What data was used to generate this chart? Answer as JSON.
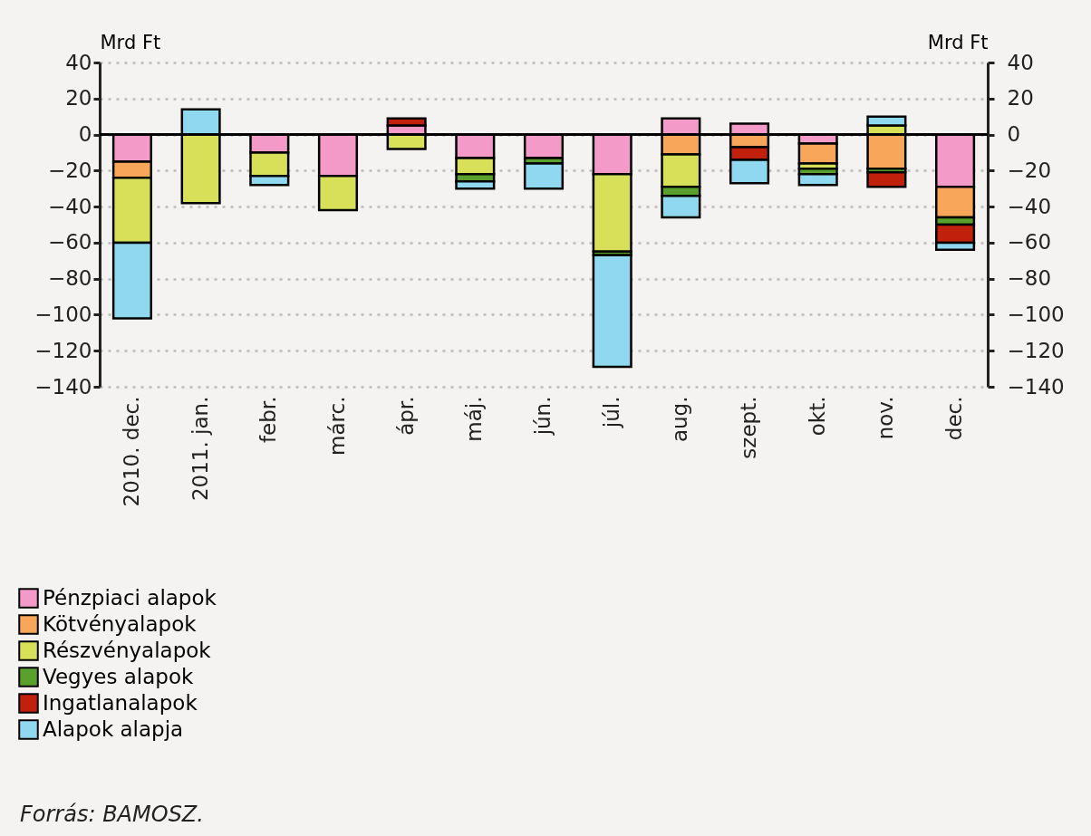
{
  "chart_data": {
    "type": "bar",
    "stacked": true,
    "ylabel": "Mrd Ft",
    "y2label": "Mrd Ft",
    "categories": [
      "2010. dec.",
      "2011. jan.",
      "febr.",
      "márc.",
      "ápr.",
      "máj.",
      "jún.",
      "júl.",
      "aug.",
      "szept.",
      "okt.",
      "nov.",
      "dec."
    ],
    "series": [
      {
        "name": "Pénzpiaci alapok",
        "color": "#f49ac8",
        "values": [
          -15,
          0,
          -10,
          -23,
          5,
          -13,
          -13,
          -22,
          9,
          6,
          -5,
          0,
          -29
        ]
      },
      {
        "name": "Kötvényalapok",
        "color": "#f7a65a",
        "values": [
          -9,
          0,
          0,
          0,
          0,
          0,
          0,
          0,
          -11,
          -7,
          -11,
          -19,
          -17
        ]
      },
      {
        "name": "Részvényalapok",
        "color": "#d8e05a",
        "values": [
          -36,
          -38,
          -13,
          -19,
          -8,
          -9,
          0,
          -43,
          -18,
          0,
          -3,
          5,
          0
        ]
      },
      {
        "name": "Vegyes alapok",
        "color": "#5aa02c",
        "values": [
          null,
          null,
          null,
          null,
          0,
          -4,
          -3,
          -2,
          -5,
          0,
          -3,
          -2,
          -4
        ]
      },
      {
        "name": "Ingatlanalapok",
        "color": "#c0200c",
        "values": [
          0,
          0,
          0,
          0,
          4,
          0,
          0,
          0,
          0,
          -7,
          0,
          -8,
          -10
        ]
      },
      {
        "name": "Alapok alapja",
        "color": "#8fd8f0",
        "values": [
          -42,
          14,
          -5,
          0,
          0,
          -4,
          -14,
          -62,
          -12,
          -13,
          -6,
          5,
          -4
        ]
      }
    ],
    "ylim": [
      -140,
      40
    ],
    "yticks": [
      -140,
      -120,
      -100,
      -80,
      -60,
      -40,
      -20,
      0,
      20,
      40
    ],
    "y2lim": [
      -140,
      40
    ],
    "y2ticks": [
      -140,
      -120,
      -100,
      -80,
      -60,
      -40,
      -20,
      0,
      20,
      40
    ],
    "ref_lines": [
      {
        "axis": "y",
        "value": 0
      }
    ],
    "grid": "y",
    "legend": "bottom left",
    "annotations": [
      "Forrás: BAMOSZ."
    ]
  }
}
